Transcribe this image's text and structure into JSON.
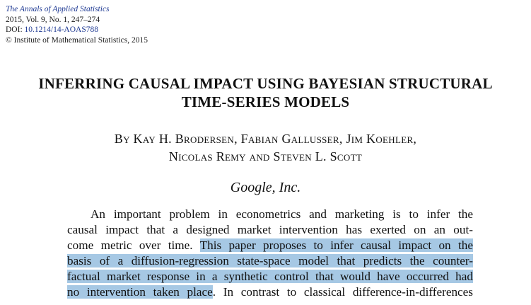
{
  "header": {
    "journal": "The Annals of Applied Statistics",
    "issue": "2015, Vol. 9, No. 1, 247–274",
    "doi_label": "DOI: ",
    "doi": "10.1214/14-AOAS788",
    "copyright": "© Institute of Mathematical Statistics, 2015"
  },
  "title": {
    "line1": "INFERRING CAUSAL IMPACT USING BAYESIAN STRUCTURAL",
    "line2": "TIME-SERIES MODELS"
  },
  "authors": {
    "line1": "By Kay H. Brodersen, Fabian Gallusser, Jim Koehler,",
    "line2": "Nicolas Remy and Steven L. Scott"
  },
  "affiliation": "Google, Inc.",
  "abstract": {
    "line1": "An important problem in econometrics and marketing is to infer the",
    "line2": "causal impact that a designed market intervention has exerted on an out-",
    "line3_pre": "come metric over time. ",
    "line3_hl": "This paper proposes to infer causal impact on the",
    "line4_hl": "basis of a diffusion-regression state-space model that predicts the counter-",
    "line5_hl": "factual market response in a synthetic control that would have occurred had",
    "line6_hl": "no intervention taken place",
    "line6_post": ". In contrast to classical difference-in-differences"
  },
  "colors": {
    "highlight": "#a6c8e4",
    "link": "#1f3a93"
  }
}
